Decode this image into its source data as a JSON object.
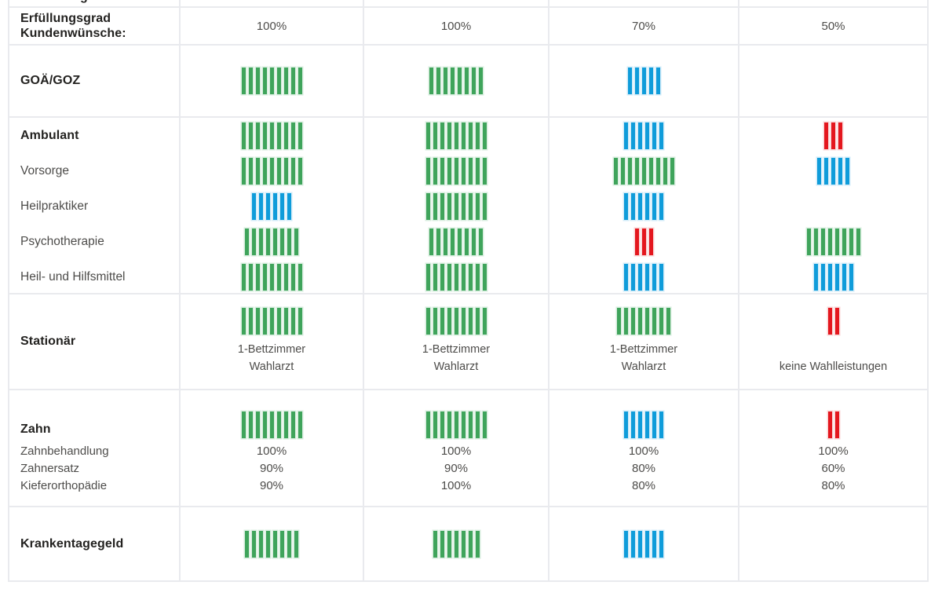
{
  "chart_data": {
    "type": "table",
    "colors": {
      "green": "#3FA45B",
      "blue": "#0F9CDA",
      "red": "#E4171E"
    },
    "column_count": 4,
    "rows": [
      {
        "id": "cutoff-top",
        "label_fragment": "g",
        "value_fragments": [
          ",",
          ",",
          ",",
          ","
        ]
      },
      {
        "id": "erfuellungsgrad",
        "label_lines": [
          "Erfüllungsgrad",
          "Kundenwünsche:"
        ],
        "values": [
          "100%",
          "100%",
          "70%",
          "50%"
        ]
      },
      {
        "id": "goa-goz",
        "label": "GOÄ/GOZ",
        "bars": [
          {
            "color": "green",
            "count": 9
          },
          {
            "color": "green",
            "count": 8
          },
          {
            "color": "blue",
            "count": 5
          },
          null
        ]
      },
      {
        "id": "ambulant-group",
        "rows": [
          {
            "label": "Ambulant",
            "bars": [
              {
                "color": "green",
                "count": 9
              },
              {
                "color": "green",
                "count": 9
              },
              {
                "color": "blue",
                "count": 6
              },
              {
                "color": "red",
                "count": 3
              }
            ]
          },
          {
            "label": "Vorsorge",
            "bars": [
              {
                "color": "green",
                "count": 9
              },
              {
                "color": "green",
                "count": 9
              },
              {
                "color": "green",
                "count": 9
              },
              {
                "color": "blue",
                "count": 5
              }
            ]
          },
          {
            "label": "Heilpraktiker",
            "bars": [
              {
                "color": "blue",
                "count": 6
              },
              {
                "color": "green",
                "count": 9
              },
              {
                "color": "blue",
                "count": 6
              },
              null
            ]
          },
          {
            "label": "Psychotherapie",
            "bars": [
              {
                "color": "green",
                "count": 8
              },
              {
                "color": "green",
                "count": 8
              },
              {
                "color": "red",
                "count": 3
              },
              {
                "color": "green",
                "count": 8
              }
            ]
          },
          {
            "label": "Heil- und Hilfsmittel",
            "bars": [
              {
                "color": "green",
                "count": 9
              },
              {
                "color": "green",
                "count": 9
              },
              {
                "color": "blue",
                "count": 6
              },
              {
                "color": "blue",
                "count": 6
              }
            ]
          }
        ]
      },
      {
        "id": "stationaer",
        "label": "Stationär",
        "cells": [
          {
            "bars": {
              "color": "green",
              "count": 9
            },
            "caption_lines": [
              "1-Bettzimmer",
              "Wahlarzt"
            ]
          },
          {
            "bars": {
              "color": "green",
              "count": 9
            },
            "caption_lines": [
              "1-Bettzimmer",
              "Wahlarzt"
            ]
          },
          {
            "bars": {
              "color": "green",
              "count": 8
            },
            "caption_lines": [
              "1-Bettzimmer",
              "Wahlarzt"
            ]
          },
          {
            "bars": {
              "color": "red",
              "count": 2
            },
            "caption_lines": [
              "",
              "keine Wahlleistungen"
            ]
          }
        ]
      },
      {
        "id": "zahn",
        "label": "Zahn",
        "sublabels": [
          "Zahnbehandlung",
          "Zahnersatz",
          "Kieferorthopädie"
        ],
        "cells": [
          {
            "bars": {
              "color": "green",
              "count": 9
            },
            "values": [
              "100%",
              "90%",
              "90%"
            ]
          },
          {
            "bars": {
              "color": "green",
              "count": 9
            },
            "values": [
              "100%",
              "90%",
              "100%"
            ]
          },
          {
            "bars": {
              "color": "blue",
              "count": 6
            },
            "values": [
              "100%",
              "80%",
              "80%"
            ]
          },
          {
            "bars": {
              "color": "red",
              "count": 2
            },
            "values": [
              "100%",
              "60%",
              "80%"
            ]
          }
        ]
      },
      {
        "id": "krankentagegeld",
        "label": "Krankentagegeld",
        "bars": [
          {
            "color": "green",
            "count": 8
          },
          {
            "color": "green",
            "count": 7
          },
          {
            "color": "blue",
            "count": 6
          },
          null
        ]
      }
    ]
  }
}
